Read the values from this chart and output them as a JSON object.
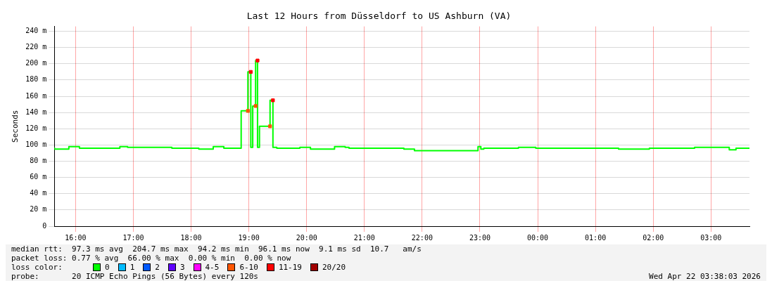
{
  "chart_data": {
    "type": "step",
    "title": "Last 12 Hours from Düsseldorf to US Ashburn (VA)",
    "ylabel": "Seconds",
    "legend_title": "loss color:",
    "legend": "bottom left",
    "grid": true,
    "xlim": [
      "2026-04-21T15:38",
      "2026-04-22T03:40"
    ],
    "xticks": [
      {
        "value": "2026-04-21T16:00",
        "label": "16:00"
      },
      {
        "value": "2026-04-21T17:00",
        "label": "17:00"
      },
      {
        "value": "2026-04-21T18:00",
        "label": "18:00"
      },
      {
        "value": "2026-04-21T19:00",
        "label": "19:00"
      },
      {
        "value": "2026-04-21T20:00",
        "label": "20:00"
      },
      {
        "value": "2026-04-21T21:00",
        "label": "21:00"
      },
      {
        "value": "2026-04-21T22:00",
        "label": "22:00"
      },
      {
        "value": "2026-04-21T23:00",
        "label": "23:00"
      },
      {
        "value": "2026-04-22T00:00",
        "label": "00:00"
      },
      {
        "value": "2026-04-22T01:00",
        "label": "01:00"
      },
      {
        "value": "2026-04-22T02:00",
        "label": "02:00"
      },
      {
        "value": "2026-04-22T03:00",
        "label": "03:00"
      }
    ],
    "ylim": [
      0,
      246
    ],
    "yticks": [
      {
        "value": 0,
        "label": "0"
      },
      {
        "value": 20,
        "label": "20 m"
      },
      {
        "value": 40,
        "label": "40 m"
      },
      {
        "value": 60,
        "label": "60 m"
      },
      {
        "value": 80,
        "label": "80 m"
      },
      {
        "value": 100,
        "label": "100 m"
      },
      {
        "value": 120,
        "label": "120 m"
      },
      {
        "value": 140,
        "label": "140 m"
      },
      {
        "value": 160,
        "label": "160 m"
      },
      {
        "value": 180,
        "label": "180 m"
      },
      {
        "value": 200,
        "label": "200 m"
      },
      {
        "value": 220,
        "label": "220 m"
      },
      {
        "value": 240,
        "label": "240 m"
      }
    ],
    "series": [
      {
        "name": "0",
        "color": "#00ff00",
        "x": [
          "2026-04-21T15:38",
          "2026-04-21T15:53",
          "2026-04-21T16:04",
          "2026-04-21T16:46",
          "2026-04-21T16:54",
          "2026-04-21T17:40",
          "2026-04-21T18:08",
          "2026-04-21T18:23",
          "2026-04-21T18:34",
          "2026-04-21T18:52",
          "2026-04-21T18:59",
          "2026-04-21T19:02",
          "2026-04-21T19:04",
          "2026-04-21T19:07",
          "2026-04-21T19:09",
          "2026-04-21T19:11",
          "2026-04-21T19:22",
          "2026-04-21T19:25",
          "2026-04-21T19:28",
          "2026-04-21T19:29",
          "2026-04-21T19:53",
          "2026-04-21T20:04",
          "2026-04-21T20:29",
          "2026-04-21T20:40",
          "2026-04-21T20:44",
          "2026-04-21T21:12",
          "2026-04-21T21:41",
          "2026-04-21T21:52",
          "2026-04-21T22:58",
          "2026-04-21T23:01",
          "2026-04-21T23:04",
          "2026-04-21T23:40",
          "2026-04-21T23:58",
          "2026-04-22T01:24",
          "2026-04-22T01:56",
          "2026-04-22T02:43",
          "2026-04-22T03:19",
          "2026-04-22T03:26",
          "2026-04-22T03:34",
          "2026-04-22T03:40"
        ],
        "values": [
          97,
          95,
          98,
          96,
          98,
          97,
          96,
          95,
          98,
          96,
          142,
          190,
          97,
          148,
          204,
          97,
          123,
          155,
          97,
          97,
          96,
          97,
          95,
          98,
          97,
          96,
          96,
          95,
          93,
          98,
          95,
          96,
          97,
          96,
          95,
          96,
          97,
          94,
          96,
          96
        ]
      },
      {
        "name": "1",
        "color": "#00bbff",
        "type": "scatter"
      },
      {
        "name": "2",
        "color": "#0059ff",
        "type": "scatter"
      },
      {
        "name": "3",
        "color": "#5e00ff",
        "type": "scatter"
      },
      {
        "name": "4-5",
        "color": "#ff00ff",
        "type": "scatter"
      },
      {
        "name": "6-10",
        "color": "#ff5500",
        "type": "scatter",
        "x": [
          "2026-04-21T18:59",
          "2026-04-21T19:07",
          "2026-04-21T19:22"
        ],
        "values": [
          142,
          148,
          123
        ]
      },
      {
        "name": "11-19",
        "color": "#ff0000",
        "type": "scatter",
        "x": [
          "2026-04-21T19:02",
          "2026-04-21T19:09",
          "2026-04-21T19:25"
        ],
        "values": [
          190,
          204,
          155
        ]
      },
      {
        "name": "20/20",
        "color": "#a10000",
        "type": "scatter"
      }
    ],
    "annotations": [
      "median rtt:  97.3 ms avg  204.7 ms max  94.2 ms min  96.1 ms now  9.1 ms sd  10.7   am/s",
      "packet loss: 0.77 % avg  66.00 % max  0.00 % min  0.00 % now",
      "probe:       20 ICMP Echo Pings (56 Bytes) every 120s",
      "Wed Apr 22 03:38:03 2026"
    ]
  }
}
